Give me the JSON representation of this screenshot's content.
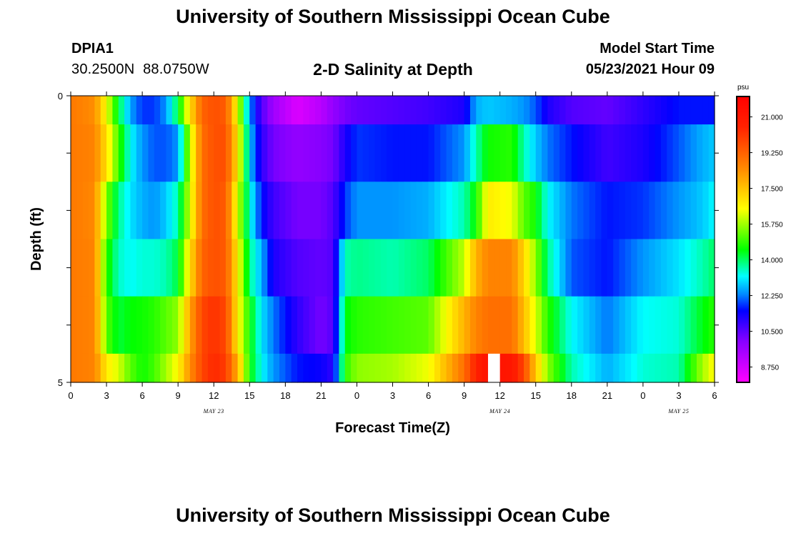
{
  "header": {
    "title": "University of Southern Mississippi Ocean Cube",
    "station_id": "DPIA1",
    "station_coords": "30.2500N  88.0750W",
    "plot_title": "2-D Salinity at Depth",
    "model_start_label": "Model Start Time",
    "model_start_value": "05/23/2021 Hour 09"
  },
  "footer": {
    "title": "University of Southern Mississippi Ocean Cube"
  },
  "chart_data": {
    "type": "heatmap",
    "xlabel": "Forecast Time(Z)",
    "ylabel": "Depth (ft)",
    "x_hours_range": [
      0,
      54
    ],
    "x_tick_labels": [
      "0",
      "3",
      "6",
      "9",
      "12",
      "15",
      "18",
      "21",
      "0",
      "3",
      "6",
      "9",
      "12",
      "15",
      "18",
      "21",
      "0",
      "3",
      "6"
    ],
    "date_labels": [
      {
        "text": "MAY 23",
        "hour": 12
      },
      {
        "text": "MAY 24",
        "hour": 36
      },
      {
        "text": "MAY 25",
        "hour": 51
      }
    ],
    "y_range_ft": [
      0,
      5
    ],
    "y_tick_labels": [
      {
        "value": 0,
        "label": "0"
      },
      {
        "value": 5,
        "label": "5"
      }
    ],
    "y_minor_ticks": [
      1,
      2,
      3,
      4
    ],
    "depth_levels_ft": [
      0.25,
      1.0,
      2.0,
      3.0,
      4.0,
      4.75
    ],
    "depth_layer_edges_ft": [
      0,
      0.5,
      1.5,
      2.5,
      3.5,
      4.5,
      5
    ],
    "colorbar": {
      "unit": "psu",
      "range": [
        8.0,
        22.0
      ],
      "tick_values": [
        21.0,
        19.25,
        17.5,
        15.75,
        14.0,
        12.25,
        10.5,
        8.75
      ],
      "tick_labels": [
        "21.000",
        "19.250",
        "17.500",
        "15.750",
        "14.000",
        "12.250",
        "10.500",
        "8.750"
      ],
      "color_stops": [
        {
          "value": 8.0,
          "color": "#ff00ff"
        },
        {
          "value": 10.0,
          "color": "#8800ff"
        },
        {
          "value": 11.5,
          "color": "#0000ff"
        },
        {
          "value": 12.3,
          "color": "#0088ff"
        },
        {
          "value": 13.2,
          "color": "#00ffff"
        },
        {
          "value": 14.5,
          "color": "#00ff00"
        },
        {
          "value": 16.5,
          "color": "#ffff00"
        },
        {
          "value": 18.5,
          "color": "#ff8800"
        },
        {
          "value": 20.5,
          "color": "#ff2200"
        },
        {
          "value": 22.0,
          "color": "#ff0000"
        }
      ]
    },
    "salinity_keyframes": [
      {
        "hour": 0,
        "values": [
          18.8,
          18.8,
          18.8,
          18.8,
          18.8,
          18.8
        ]
      },
      {
        "hour": 2,
        "values": [
          18.4,
          18.6,
          18.5,
          18.6,
          18.6,
          18.6
        ]
      },
      {
        "hour": 3,
        "values": [
          16.5,
          17.0,
          15.5,
          14.8,
          15.2,
          16.8
        ]
      },
      {
        "hour": 4,
        "values": [
          14.2,
          15.0,
          13.8,
          13.5,
          14.2,
          16.2
        ]
      },
      {
        "hour": 5,
        "values": [
          12.5,
          13.2,
          13.0,
          13.2,
          14.5,
          15.2
        ]
      },
      {
        "hour": 6,
        "values": [
          11.8,
          12.4,
          12.6,
          13.4,
          14.6,
          14.6
        ]
      },
      {
        "hour": 7,
        "values": [
          11.8,
          12.0,
          12.4,
          13.4,
          14.8,
          15.0
        ]
      },
      {
        "hour": 8,
        "values": [
          12.4,
          12.0,
          12.8,
          13.6,
          15.2,
          15.8
        ]
      },
      {
        "hour": 9,
        "values": [
          14.2,
          12.4,
          13.6,
          14.2,
          15.6,
          16.6
        ]
      },
      {
        "hour": 10,
        "values": [
          17.0,
          16.0,
          16.2,
          17.0,
          18.0,
          18.4
        ]
      },
      {
        "hour": 11,
        "values": [
          19.2,
          19.0,
          19.0,
          19.2,
          19.8,
          19.8
        ]
      },
      {
        "hour": 12,
        "values": [
          19.6,
          19.6,
          19.6,
          19.6,
          20.2,
          20.4
        ]
      },
      {
        "hour": 13,
        "values": [
          19.4,
          19.6,
          19.4,
          19.4,
          19.8,
          20.0
        ]
      },
      {
        "hour": 14,
        "values": [
          16.4,
          17.0,
          16.2,
          16.8,
          16.8,
          17.8
        ]
      },
      {
        "hour": 15,
        "values": [
          12.4,
          12.8,
          13.4,
          13.8,
          14.6,
          14.6
        ]
      },
      {
        "hour": 16,
        "values": [
          10.6,
          11.0,
          11.6,
          12.6,
          13.0,
          13.2
        ]
      },
      {
        "hour": 17,
        "values": [
          9.6,
          10.2,
          10.8,
          11.2,
          12.2,
          12.4
        ]
      },
      {
        "hour": 19,
        "values": [
          8.6,
          9.8,
          10.2,
          10.6,
          11.0,
          11.6
        ]
      },
      {
        "hour": 21,
        "values": [
          9.2,
          10.0,
          10.2,
          10.4,
          10.2,
          11.4
        ]
      },
      {
        "hour": 22,
        "values": [
          9.8,
          10.2,
          10.6,
          10.6,
          10.6,
          11.0
        ]
      },
      {
        "hour": 23,
        "values": [
          10.2,
          11.2,
          11.8,
          13.6,
          14.4,
          14.8
        ]
      },
      {
        "hour": 24,
        "values": [
          10.4,
          11.8,
          12.4,
          13.8,
          14.8,
          15.6
        ]
      },
      {
        "hour": 27,
        "values": [
          10.6,
          11.6,
          12.4,
          13.6,
          15.0,
          15.8
        ]
      },
      {
        "hour": 30,
        "values": [
          10.8,
          11.6,
          12.6,
          14.0,
          15.2,
          16.4
        ]
      },
      {
        "hour": 33,
        "values": [
          11.2,
          12.4,
          13.6,
          16.0,
          17.8,
          19.0
        ]
      },
      {
        "hour": 34,
        "values": [
          12.6,
          13.6,
          14.6,
          17.8,
          18.6,
          20.6
        ]
      },
      {
        "hour": 35,
        "values": [
          12.8,
          14.6,
          16.8,
          18.6,
          19.0,
          21.2
        ]
      },
      {
        "hour": 37,
        "values": [
          12.6,
          14.8,
          16.4,
          18.6,
          19.0,
          21.0
        ]
      },
      {
        "hour": 38,
        "values": [
          12.4,
          13.6,
          15.2,
          17.2,
          17.6,
          19.8
        ]
      },
      {
        "hour": 39,
        "values": [
          12.0,
          12.8,
          14.6,
          15.6,
          16.2,
          17.4
        ]
      },
      {
        "hour": 40,
        "values": [
          11.2,
          12.2,
          13.2,
          13.8,
          14.8,
          15.6
        ]
      },
      {
        "hour": 42,
        "values": [
          10.6,
          11.6,
          12.2,
          12.0,
          13.2,
          13.6
        ]
      },
      {
        "hour": 45,
        "values": [
          10.4,
          10.8,
          11.6,
          11.6,
          12.2,
          12.6
        ]
      },
      {
        "hour": 48,
        "values": [
          11.0,
          11.2,
          11.8,
          12.4,
          13.2,
          13.4
        ]
      },
      {
        "hour": 51,
        "values": [
          11.6,
          12.0,
          12.4,
          13.0,
          13.4,
          13.6
        ]
      },
      {
        "hour": 53,
        "values": [
          11.6,
          12.6,
          12.8,
          13.6,
          14.4,
          15.8
        ]
      },
      {
        "hour": 54,
        "values": [
          11.6,
          12.8,
          13.2,
          14.0,
          14.8,
          16.6
        ]
      }
    ],
    "missing_cells": [
      {
        "hour": 35.5,
        "depth_index": 5
      }
    ]
  }
}
